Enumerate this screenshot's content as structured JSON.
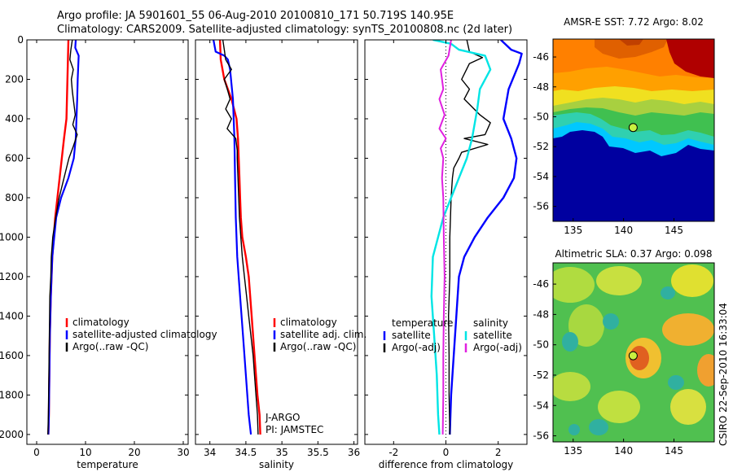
{
  "header": {
    "line1": "Argo profile: JA 5901601_55 06-Aug-2010 20100810_171 50.719S 140.95E",
    "line2": "Climatology: CARS2009. Satellite-adjusted climatology: synTS_20100808.nc (2d later)"
  },
  "footer_stamp": "CSIRO 22-Sep-2010 16:33:04",
  "colors": {
    "red": "#ff0000",
    "blue": "#0000ff",
    "black": "#000000",
    "cyan": "#00e5e5",
    "magenta": "#e020e0"
  },
  "chart_data": [
    {
      "type": "line",
      "xlabel": "temperature",
      "xlim": [
        -2,
        31
      ],
      "ylim": [
        0,
        2050
      ],
      "xticks": [
        0,
        10,
        20,
        30
      ],
      "yticks": [
        0,
        200,
        400,
        600,
        800,
        1000,
        1200,
        1400,
        1600,
        1800,
        2000
      ],
      "legend": [
        "climatology",
        "satellite-adjusted climatology",
        "Argo(..raw -QC)"
      ],
      "series": [
        {
          "name": "climatology",
          "color": "red",
          "points": [
            [
              6.5,
              0
            ],
            [
              6.4,
              100
            ],
            [
              6.3,
              200
            ],
            [
              6.1,
              400
            ],
            [
              5.6,
              500
            ],
            [
              4.7,
              700
            ],
            [
              3.8,
              900
            ],
            [
              3.2,
              1100
            ],
            [
              2.9,
              1300
            ],
            [
              2.7,
              1500
            ],
            [
              2.6,
              1700
            ],
            [
              2.5,
              1900
            ],
            [
              2.4,
              2000
            ]
          ]
        },
        {
          "name": "satellite-adjusted climatology",
          "color": "blue",
          "points": [
            [
              8.0,
              0
            ],
            [
              7.9,
              40
            ],
            [
              8.6,
              80
            ],
            [
              8.4,
              200
            ],
            [
              8.3,
              300
            ],
            [
              8.0,
              500
            ],
            [
              7.6,
              600
            ],
            [
              6.5,
              700
            ],
            [
              5.0,
              800
            ],
            [
              4.0,
              900
            ],
            [
              3.2,
              1100
            ],
            [
              2.9,
              1300
            ],
            [
              2.7,
              1500
            ],
            [
              2.6,
              1700
            ],
            [
              2.5,
              1900
            ],
            [
              2.4,
              2000
            ]
          ]
        },
        {
          "name": "Argo(..raw -QC)",
          "color": "black",
          "points": [
            [
              7.3,
              0
            ],
            [
              7.0,
              50
            ],
            [
              6.8,
              100
            ],
            [
              7.5,
              150
            ],
            [
              7.1,
              200
            ],
            [
              7.3,
              260
            ],
            [
              7.6,
              320
            ],
            [
              7.9,
              380
            ],
            [
              7.4,
              430
            ],
            [
              8.3,
              480
            ],
            [
              7.5,
              540
            ],
            [
              6.6,
              600
            ],
            [
              5.6,
              700
            ],
            [
              4.6,
              800
            ],
            [
              3.9,
              900
            ],
            [
              3.3,
              1000
            ],
            [
              3.0,
              1100
            ],
            [
              2.9,
              1200
            ],
            [
              2.7,
              1300
            ],
            [
              2.6,
              1500
            ],
            [
              2.5,
              1700
            ],
            [
              2.4,
              1900
            ],
            [
              2.3,
              2000
            ]
          ]
        }
      ]
    },
    {
      "type": "line",
      "xlabel": "salinity",
      "xlim": [
        33.8,
        36.05
      ],
      "ylim": [
        0,
        2050
      ],
      "xticks": [
        34,
        34.5,
        35,
        35.5,
        36
      ],
      "yticks": [
        0,
        200,
        400,
        600,
        800,
        1000,
        1200,
        1400,
        1600,
        1800,
        2000
      ],
      "legend": [
        "climatology",
        "satellite adj. clim.",
        "Argo(..raw -QC)"
      ],
      "annotations": [
        "J-ARGO",
        "PI: JAMSTEC"
      ],
      "series": [
        {
          "name": "climatology",
          "color": "red",
          "points": [
            [
              34.14,
              0
            ],
            [
              34.15,
              100
            ],
            [
              34.2,
              200
            ],
            [
              34.3,
              300
            ],
            [
              34.37,
              400
            ],
            [
              34.39,
              500
            ],
            [
              34.4,
              600
            ],
            [
              34.41,
              700
            ],
            [
              34.42,
              800
            ],
            [
              34.43,
              900
            ],
            [
              34.45,
              1000
            ],
            [
              34.5,
              1100
            ],
            [
              34.54,
              1200
            ],
            [
              34.58,
              1400
            ],
            [
              34.62,
              1600
            ],
            [
              34.66,
              1800
            ],
            [
              34.69,
              1900
            ],
            [
              34.7,
              2000
            ]
          ]
        },
        {
          "name": "satellite adj. clim.",
          "color": "blue",
          "points": [
            [
              34.05,
              0
            ],
            [
              34.08,
              60
            ],
            [
              34.2,
              80
            ],
            [
              34.25,
              100
            ],
            [
              34.28,
              150
            ],
            [
              34.32,
              300
            ],
            [
              34.34,
              500
            ],
            [
              34.35,
              700
            ],
            [
              34.36,
              900
            ],
            [
              34.38,
              1100
            ],
            [
              34.42,
              1300
            ],
            [
              34.46,
              1500
            ],
            [
              34.5,
              1700
            ],
            [
              34.54,
              1900
            ],
            [
              34.57,
              2000
            ]
          ]
        },
        {
          "name": "Argo(..raw -QC)",
          "color": "black",
          "points": [
            [
              34.18,
              0
            ],
            [
              34.2,
              50
            ],
            [
              34.22,
              100
            ],
            [
              34.3,
              150
            ],
            [
              34.2,
              200
            ],
            [
              34.25,
              260
            ],
            [
              34.28,
              300
            ],
            [
              34.22,
              350
            ],
            [
              34.3,
              400
            ],
            [
              34.24,
              450
            ],
            [
              34.36,
              500
            ],
            [
              34.38,
              560
            ],
            [
              34.38,
              600
            ],
            [
              34.39,
              700
            ],
            [
              34.4,
              800
            ],
            [
              34.41,
              900
            ],
            [
              34.43,
              1000
            ],
            [
              34.45,
              1100
            ],
            [
              34.48,
              1200
            ],
            [
              34.51,
              1300
            ],
            [
              34.54,
              1400
            ],
            [
              34.57,
              1500
            ],
            [
              34.6,
              1600
            ],
            [
              34.62,
              1700
            ],
            [
              34.64,
              1800
            ],
            [
              34.66,
              1900
            ],
            [
              34.67,
              2000
            ]
          ]
        }
      ]
    },
    {
      "type": "line",
      "xlabel": "difference from climatology",
      "xlim": [
        -3.1,
        3.1
      ],
      "ylim": [
        0,
        2050
      ],
      "xticks": [
        -2,
        0,
        2
      ],
      "yticks": [
        0,
        200,
        400,
        600,
        800,
        1000,
        1200,
        1400,
        1600,
        1800,
        2000
      ],
      "legend_groups": [
        {
          "title": "temperature",
          "items": [
            "satellite",
            "Argo(-adj)"
          ]
        },
        {
          "title": "salinity",
          "items": [
            "satellite",
            "Argo(-adj)"
          ]
        }
      ],
      "series": [
        {
          "group": "temperature",
          "name": "satellite",
          "color": "blue",
          "points": [
            [
              2.1,
              0
            ],
            [
              2.5,
              50
            ],
            [
              2.9,
              70
            ],
            [
              2.8,
              120
            ],
            [
              2.4,
              250
            ],
            [
              2.2,
              400
            ],
            [
              2.5,
              500
            ],
            [
              2.7,
              600
            ],
            [
              2.6,
              700
            ],
            [
              2.2,
              800
            ],
            [
              1.6,
              900
            ],
            [
              1.1,
              1000
            ],
            [
              0.7,
              1100
            ],
            [
              0.5,
              1200
            ],
            [
              0.4,
              1400
            ],
            [
              0.3,
              1600
            ],
            [
              0.2,
              1800
            ],
            [
              0.15,
              2000
            ]
          ]
        },
        {
          "group": "temperature",
          "name": "Argo(-adj)",
          "color": "black",
          "points": [
            [
              0.8,
              0
            ],
            [
              0.9,
              60
            ],
            [
              1.4,
              90
            ],
            [
              0.9,
              120
            ],
            [
              0.6,
              200
            ],
            [
              0.9,
              250
            ],
            [
              0.7,
              300
            ],
            [
              1.3,
              380
            ],
            [
              1.7,
              420
            ],
            [
              1.5,
              480
            ],
            [
              0.7,
              500
            ],
            [
              1.6,
              530
            ],
            [
              0.6,
              570
            ],
            [
              0.5,
              600
            ],
            [
              0.3,
              650
            ],
            [
              0.25,
              700
            ],
            [
              0.2,
              800
            ],
            [
              0.15,
              1000
            ],
            [
              0.15,
              1200
            ],
            [
              0.1,
              1400
            ],
            [
              0.12,
              1600
            ],
            [
              0.12,
              1800
            ],
            [
              0.15,
              2000
            ]
          ]
        },
        {
          "group": "salinity",
          "name": "satellite",
          "color": "cyan",
          "points": [
            [
              -0.5,
              0
            ],
            [
              0.2,
              20
            ],
            [
              0.5,
              50
            ],
            [
              1.5,
              80
            ],
            [
              1.7,
              150
            ],
            [
              1.3,
              250
            ],
            [
              1.2,
              350
            ],
            [
              1.0,
              500
            ],
            [
              0.8,
              600
            ],
            [
              0.5,
              700
            ],
            [
              0.2,
              800
            ],
            [
              -0.1,
              900
            ],
            [
              -0.3,
              1000
            ],
            [
              -0.5,
              1100
            ],
            [
              -0.55,
              1300
            ],
            [
              -0.45,
              1500
            ],
            [
              -0.35,
              1700
            ],
            [
              -0.3,
              1900
            ],
            [
              -0.25,
              2000
            ]
          ]
        },
        {
          "group": "salinity",
          "name": "Argo(-adj)",
          "color": "magenta",
          "points": [
            [
              0.2,
              0
            ],
            [
              0.1,
              80
            ],
            [
              -0.2,
              150
            ],
            [
              -0.1,
              250
            ],
            [
              -0.25,
              300
            ],
            [
              -0.05,
              380
            ],
            [
              -0.25,
              450
            ],
            [
              0.0,
              500
            ],
            [
              -0.2,
              550
            ],
            [
              -0.1,
              600
            ],
            [
              -0.15,
              700
            ],
            [
              -0.1,
              800
            ],
            [
              -0.08,
              1000
            ],
            [
              -0.05,
              1200
            ],
            [
              -0.08,
              1400
            ],
            [
              -0.1,
              1600
            ],
            [
              -0.1,
              1800
            ],
            [
              -0.12,
              2000
            ]
          ]
        }
      ]
    },
    {
      "type": "heatmap",
      "title": "AMSR-E SST: 7.72 Argo: 8.02",
      "xlim": [
        133,
        149
      ],
      "ylim": [
        -57,
        -44.8
      ],
      "xticks": [
        135,
        140,
        145
      ],
      "yticks": [
        -46,
        -48,
        -50,
        -52,
        -54,
        -56
      ],
      "marker": {
        "lon": 140.95,
        "lat": -50.72
      }
    },
    {
      "type": "heatmap",
      "title": "Altimetric SLA: 0.37 Argo: 0.098",
      "xlim": [
        133,
        149
      ],
      "ylim": [
        -56.4,
        -44.6
      ],
      "xticks": [
        135,
        140,
        145
      ],
      "yticks": [
        -46,
        -48,
        -50,
        -52,
        -54,
        -56
      ],
      "marker": {
        "lon": 140.95,
        "lat": -50.72
      }
    }
  ]
}
